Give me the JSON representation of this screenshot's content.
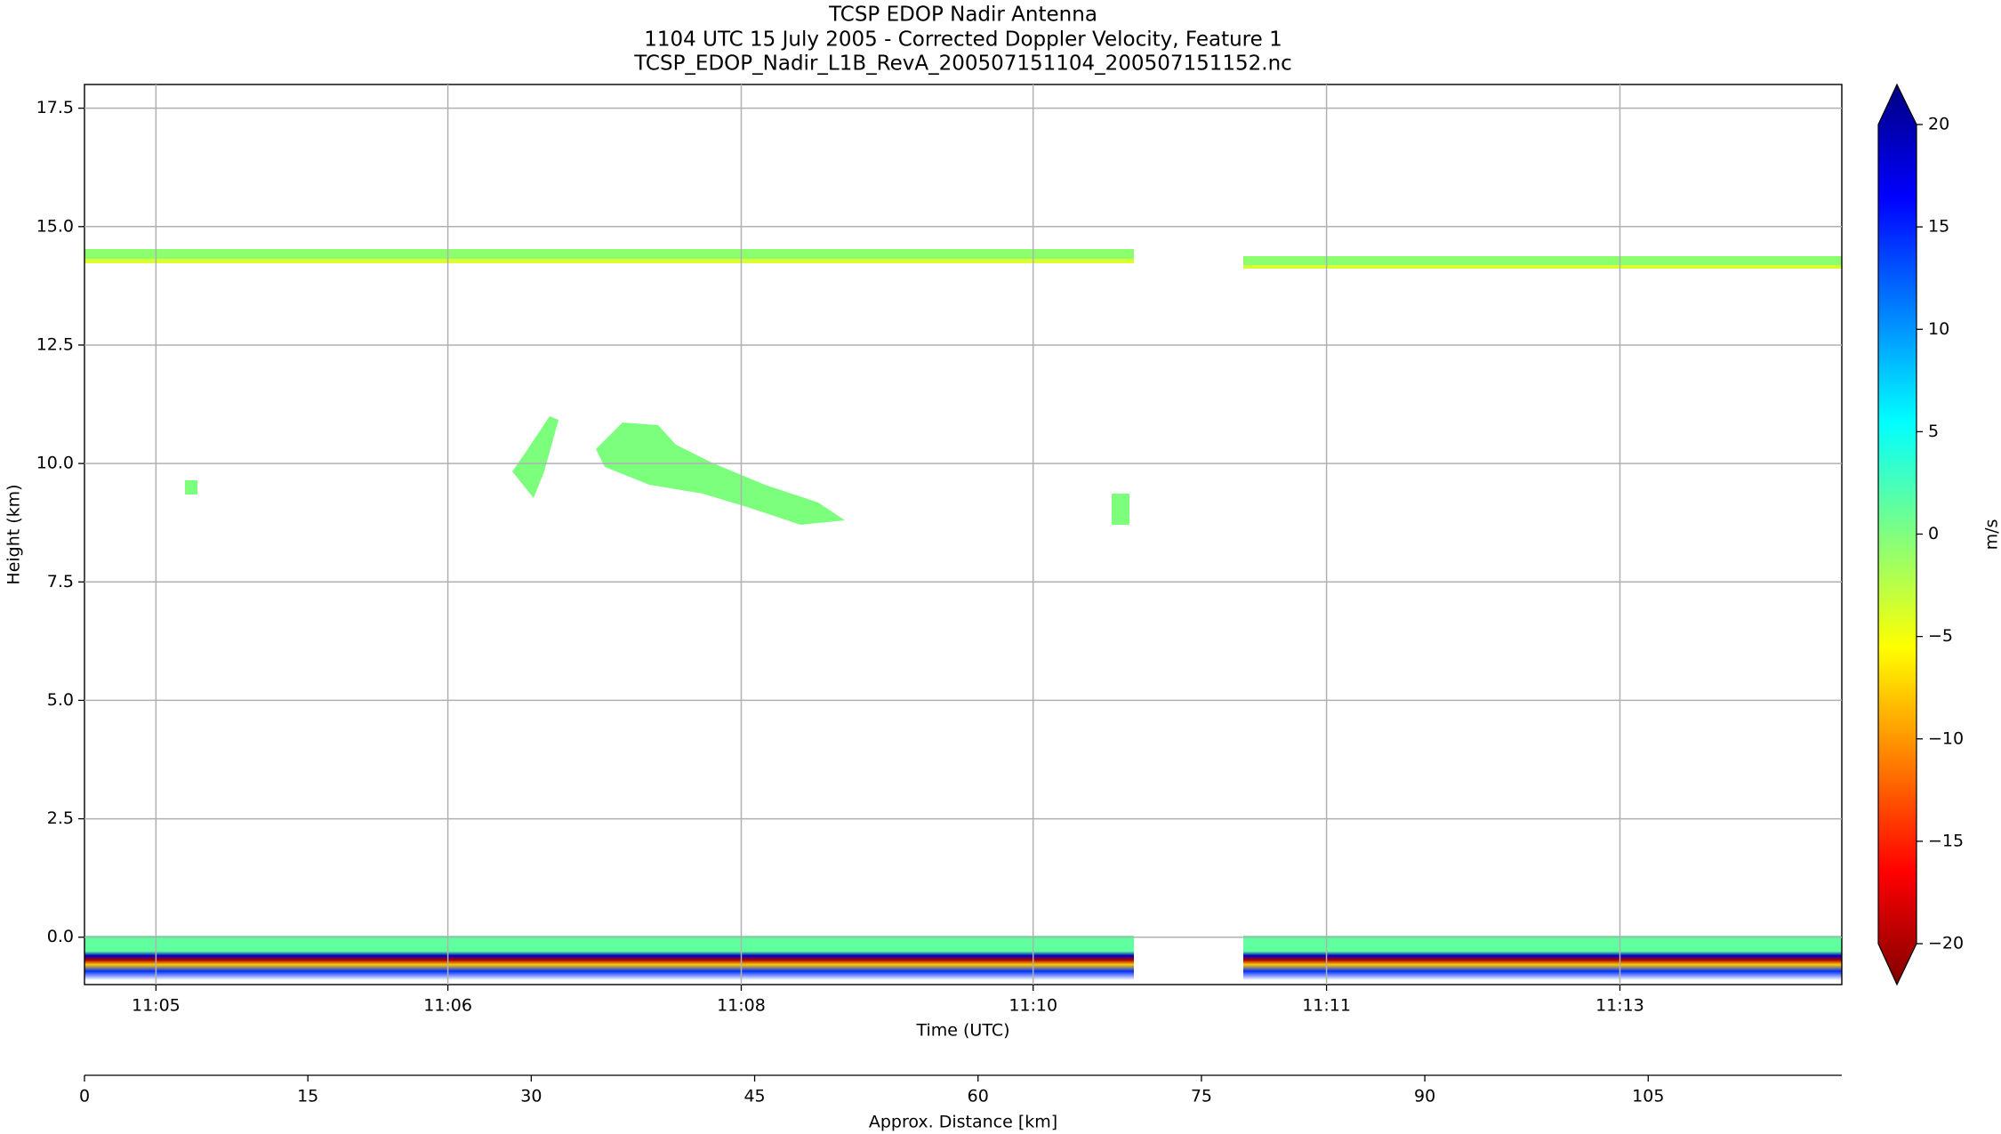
{
  "chart_data": {
    "type": "heatmap",
    "title": [
      "TCSP EDOP Nadir Antenna",
      "1104 UTC 15 July 2005 - Corrected Doppler Velocity, Feature 1",
      "TCSP_EDOP_Nadir_L1B_RevA_200507151104_200507151152.nc"
    ],
    "xlabel": "Time (UTC)",
    "ylabel": "Height (km)",
    "x2label": "Approx. Distance [km]",
    "colorbar_label": "m/s",
    "colormap": "jet",
    "xlim": [
      0,
      118
    ],
    "ylim": [
      -1,
      18
    ],
    "clim": [
      -20,
      20
    ],
    "xticks": [
      {
        "value": 4.8,
        "label": "11:05"
      },
      {
        "value": 24.4,
        "label": "11:06"
      },
      {
        "value": 44.1,
        "label": "11:08"
      },
      {
        "value": 63.7,
        "label": "11:10"
      },
      {
        "value": 83.4,
        "label": "11:11"
      },
      {
        "value": 103.1,
        "label": "11:13"
      }
    ],
    "x2ticks": [
      0,
      15,
      30,
      45,
      60,
      75,
      90,
      105
    ],
    "yticks": [
      {
        "value": 0,
        "label": "0.0"
      },
      2.5,
      {
        "value": 5,
        "label": "5.0"
      },
      7.5,
      {
        "value": 10,
        "label": "10.0"
      },
      12.5,
      {
        "value": 15,
        "label": "15.0"
      },
      17.5
    ],
    "cticks": [
      {
        "value": -20,
        "label": "−20"
      },
      {
        "value": -15,
        "label": "−15"
      },
      {
        "value": -10,
        "label": "−10"
      },
      {
        "value": -5,
        "label": "−5"
      },
      0,
      5,
      10,
      15,
      20
    ],
    "grid": true
  }
}
